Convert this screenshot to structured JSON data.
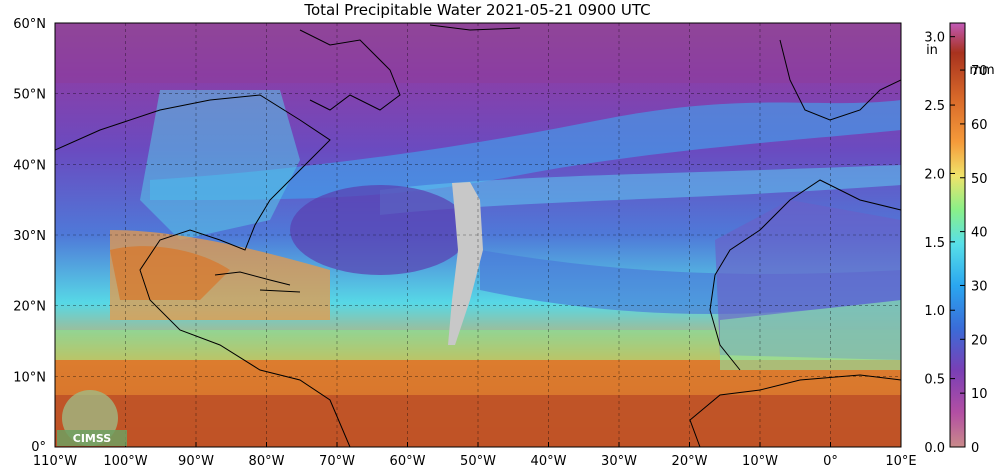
{
  "title": "Total Precipitable Water  2021-05-21 0900 UTC",
  "map": {
    "lon_labels": [
      "110°W",
      "100°W",
      "90°W",
      "80°W",
      "70°W",
      "60°W",
      "50°W",
      "40°W",
      "30°W",
      "20°W",
      "10°W",
      "0°",
      "10°E"
    ],
    "lat_labels": [
      "60°N",
      "50°N",
      "40°N",
      "30°N",
      "20°N",
      "10°N",
      "0°"
    ],
    "lon_range": [
      -110,
      10
    ],
    "lat_range": [
      0,
      60
    ],
    "grid": true,
    "missing_data_color": "#c8c8c8"
  },
  "colorbar": {
    "in_unit": "in",
    "mm_unit": "mm",
    "in_ticks": [
      "3.0",
      "2.5",
      "2.0",
      "1.5",
      "1.0",
      "0.5",
      "0.0"
    ],
    "mm_ticks": [
      "70",
      "60",
      "50",
      "40",
      "30",
      "20",
      "10",
      "0"
    ],
    "colors": [
      "#c98a8a",
      "#b34fa3",
      "#7a3fb5",
      "#3a6cd8",
      "#2aa6f0",
      "#58e0e8",
      "#8af088",
      "#f0e36a",
      "#f59a3a",
      "#d96a2a",
      "#a8321e",
      "#c25ab8"
    ]
  },
  "logo": {
    "text": "CIMSS"
  }
}
